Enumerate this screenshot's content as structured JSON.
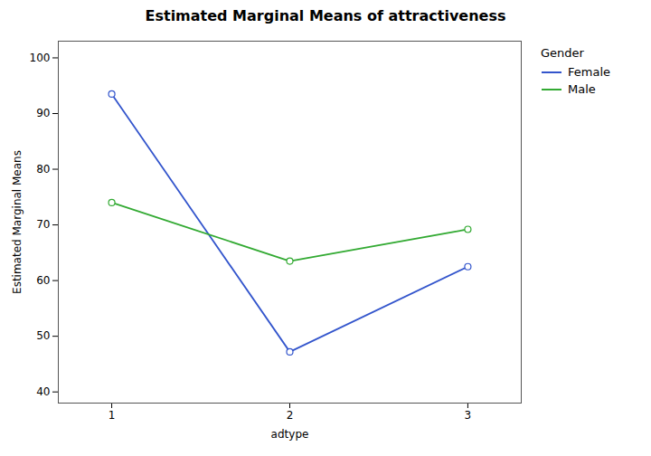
{
  "chart_data": {
    "type": "line",
    "title": "Estimated Marginal Means of attractiveness",
    "xlabel": "adtype",
    "ylabel": "Estimated Marginal Means",
    "x": [
      1,
      2,
      3
    ],
    "xlim": [
      0.7,
      3.3
    ],
    "xticks": [
      1,
      2,
      3
    ],
    "ylim": [
      38,
      103
    ],
    "yticks": [
      40,
      50,
      60,
      70,
      80,
      90,
      100
    ],
    "grid": false,
    "legend": "right",
    "legend_title": "Gender",
    "marker": "circle",
    "series": [
      {
        "name": "Female",
        "color": "#3355cc",
        "values": [
          93.5,
          47.2,
          62.5
        ]
      },
      {
        "name": "Male",
        "color": "#33aa33",
        "values": [
          74.0,
          63.5,
          69.2
        ]
      }
    ]
  }
}
